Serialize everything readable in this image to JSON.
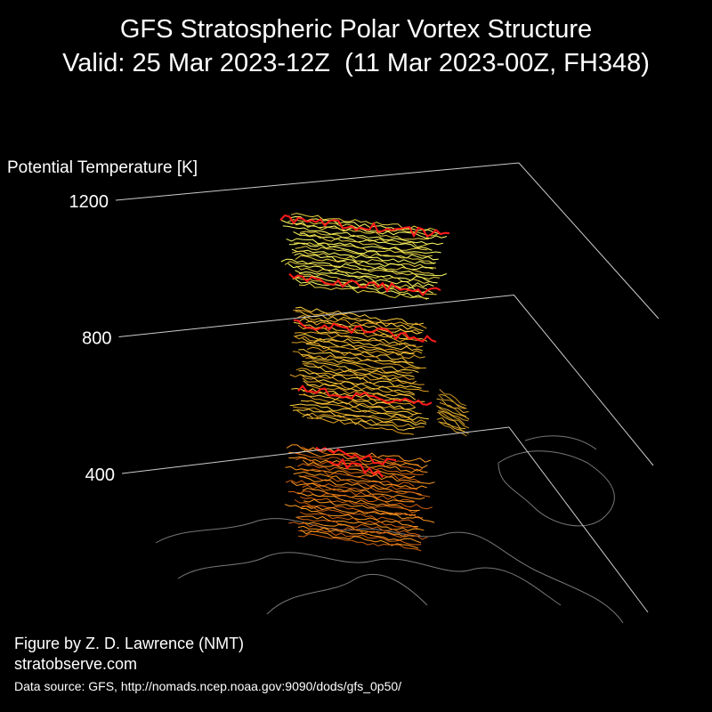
{
  "chart_data": {
    "type": "vortex3d",
    "title": "GFS Stratospheric Polar Vortex Structure",
    "subtitle": "Valid: 25 Mar 2023-12Z  (11 Mar 2023-00Z, FH348)",
    "zlabel": "Potential Temperature [K]",
    "zlim": [
      400,
      1200
    ],
    "zticks": [
      400,
      800,
      1200
    ],
    "grid": true,
    "credits": [
      "Figure by Z. D. Lawrence (NMT)",
      "stratobserve.com"
    ],
    "source": "Data source: GFS, http://nomads.ncep.noaa.gov:9090/dods/gfs_0p50/"
  }
}
